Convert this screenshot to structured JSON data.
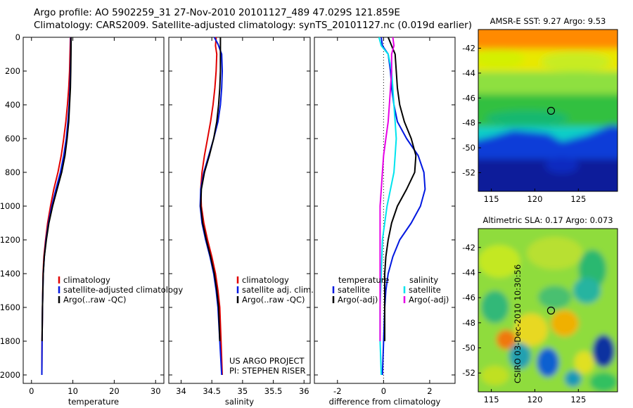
{
  "title": {
    "line1": "Argo profile: AO 5902259_31 27-Nov-2010 20101127_489 47.029S 121.859E",
    "line2": "Climatology: CARS2009. Satellite-adjusted climatology: synTS_20101127.nc (0.019d earlier)"
  },
  "watermark": "CSIRO 03-Dec-2010 10:30:56",
  "colors": {
    "climatology": "#e00000",
    "satellite": "#0018e0",
    "argo": "#000000",
    "sat_salinity": "#00e4ee",
    "argo_salinity_adj": "#e600e6"
  },
  "chart_data": [
    {
      "type": "line",
      "id": "temperature",
      "xlabel": "temperature",
      "xlim": [
        -2,
        32
      ],
      "ylim": [
        0,
        2050
      ],
      "y_reversed": true,
      "xticks": [
        0,
        10,
        20,
        30
      ],
      "xtick_labels": [
        "0",
        "10",
        "20",
        "30"
      ],
      "yticks": [
        0,
        200,
        400,
        600,
        800,
        1000,
        1200,
        1400,
        1600,
        1800,
        2000
      ],
      "ytick_labels": [
        "0",
        "200",
        "400",
        "600",
        "800",
        "1000",
        "1200",
        "1400",
        "1600",
        "1800",
        "2000"
      ],
      "legend": {
        "placement": "lower-right",
        "entries": [
          "climatology",
          "satellite-adjusted climatology",
          "Argo(..raw -QC)"
        ]
      },
      "series": [
        {
          "name": "climatology",
          "color": "#e00000",
          "x": [
            9.4,
            9.3,
            9.2,
            9.0,
            8.7,
            8.3,
            7.8,
            7.2,
            6.4,
            5.4,
            4.6,
            3.9,
            3.4,
            3.0,
            2.8,
            2.65,
            2.55,
            2.5
          ],
          "y": [
            0,
            100,
            200,
            300,
            400,
            500,
            600,
            700,
            800,
            900,
            1000,
            1100,
            1200,
            1300,
            1400,
            1600,
            1800,
            2000
          ]
        },
        {
          "name": "satellite-adjusted climatology",
          "color": "#0018e0",
          "x": [
            9.5,
            9.5,
            9.4,
            9.3,
            9.1,
            8.8,
            8.4,
            7.8,
            7.0,
            5.9,
            4.9,
            4.1,
            3.5,
            3.1,
            2.85,
            2.65,
            2.55,
            2.5
          ],
          "y": [
            0,
            100,
            200,
            300,
            400,
            500,
            600,
            700,
            800,
            900,
            1000,
            1100,
            1200,
            1300,
            1400,
            1600,
            1800,
            2000
          ]
        },
        {
          "name": "Argo(..raw -QC)",
          "color": "#000000",
          "x": [
            9.6,
            9.55,
            9.5,
            9.4,
            9.2,
            9.0,
            8.6,
            8.1,
            7.3,
            6.2,
            5.1,
            4.2,
            3.6,
            3.1,
            2.85,
            2.65,
            2.55
          ],
          "y": [
            0,
            100,
            200,
            300,
            400,
            500,
            600,
            700,
            800,
            900,
            1000,
            1100,
            1200,
            1300,
            1400,
            1600,
            1800
          ]
        }
      ]
    },
    {
      "type": "line",
      "id": "salinity",
      "xlabel": "salinity",
      "xlim": [
        33.8,
        36.1
      ],
      "ylim": [
        0,
        2050
      ],
      "y_reversed": true,
      "xticks": [
        34,
        34.5,
        35,
        35.5,
        36
      ],
      "xtick_labels": [
        "34",
        "34.5",
        "35",
        "35.5",
        "36"
      ],
      "legend": {
        "placement": "lower-right",
        "entries": [
          "climatology",
          "satellite adj. clim.",
          "Argo(..raw -QC)"
        ]
      },
      "annotation": [
        "US ARGO PROJECT",
        "PI: STEPHEN RISER"
      ],
      "series": [
        {
          "name": "climatology",
          "color": "#e00000",
          "x": [
            34.57,
            34.56,
            34.58,
            34.57,
            34.55,
            34.52,
            34.48,
            34.43,
            34.38,
            34.34,
            34.32,
            34.33,
            34.37,
            34.43,
            34.5,
            34.56,
            34.6,
            34.63,
            34.65,
            34.67
          ],
          "y": [
            0,
            50,
            100,
            200,
            300,
            400,
            500,
            600,
            700,
            800,
            900,
            1000,
            1100,
            1200,
            1300,
            1400,
            1500,
            1600,
            1800,
            2000
          ]
        },
        {
          "name": "satellite adj. clim.",
          "color": "#0018e0",
          "x": [
            34.54,
            34.6,
            34.66,
            34.67,
            34.66,
            34.64,
            34.6,
            34.53,
            34.45,
            34.37,
            34.32,
            34.31,
            34.34,
            34.4,
            34.47,
            34.53,
            34.57,
            34.6,
            34.63,
            34.66
          ],
          "y": [
            0,
            40,
            100,
            200,
            300,
            400,
            500,
            600,
            700,
            800,
            900,
            1000,
            1100,
            1200,
            1300,
            1400,
            1500,
            1600,
            1800,
            2000
          ]
        },
        {
          "name": "Argo(..raw -QC)",
          "color": "#000000",
          "x": [
            34.64,
            34.64,
            34.64,
            34.64,
            34.63,
            34.61,
            34.58,
            34.53,
            34.46,
            34.38,
            34.33,
            34.32,
            34.35,
            34.41,
            34.48,
            34.54,
            34.58,
            34.61,
            34.63
          ],
          "y": [
            0,
            50,
            100,
            200,
            300,
            400,
            500,
            600,
            700,
            800,
            900,
            1000,
            1100,
            1200,
            1300,
            1400,
            1500,
            1600,
            1800
          ]
        }
      ]
    },
    {
      "type": "line",
      "id": "difference",
      "xlabel": "difference from climatology",
      "xlim": [
        -3,
        3.1
      ],
      "ylim": [
        0,
        2050
      ],
      "y_reversed": true,
      "xticks": [
        -2,
        0,
        2
      ],
      "xtick_labels": [
        "-2",
        "0",
        "2"
      ],
      "legend": {
        "placement": "lower-center",
        "temperature_heading": "temperature",
        "salinity_heading": "salinity",
        "entries": [
          "satellite",
          "Argo(-adj)",
          "satellite",
          "Argo(-adj)"
        ]
      },
      "series": [
        {
          "name": "temperature satellite",
          "color": "#0018e0",
          "x": [
            -0.1,
            -0.05,
            0.2,
            0.3,
            0.35,
            0.45,
            0.6,
            1.0,
            1.5,
            1.75,
            1.8,
            1.6,
            1.2,
            0.7,
            0.4,
            0.2,
            0.1,
            0.05,
            0.0,
            -0.05
          ],
          "y": [
            0,
            50,
            100,
            200,
            300,
            400,
            500,
            600,
            700,
            800,
            900,
            1000,
            1100,
            1200,
            1300,
            1400,
            1500,
            1600,
            1800,
            2000
          ]
        },
        {
          "name": "temperature Argo(-adj)",
          "color": "#000000",
          "x": [
            0.2,
            0.35,
            0.5,
            0.55,
            0.6,
            0.7,
            0.9,
            1.2,
            1.4,
            1.35,
            1.0,
            0.6,
            0.35,
            0.2,
            0.1,
            0.05,
            0.05,
            0.05,
            0.05
          ],
          "y": [
            0,
            50,
            100,
            200,
            300,
            400,
            500,
            600,
            700,
            800,
            900,
            1000,
            1100,
            1200,
            1300,
            1400,
            1500,
            1600,
            1800
          ]
        },
        {
          "name": "salinity satellite",
          "color": "#00e4ee",
          "x": [
            -0.2,
            -0.1,
            0.2,
            0.35,
            0.4,
            0.45,
            0.5,
            0.55,
            0.5,
            0.45,
            0.3,
            0.15,
            0.05,
            -0.05,
            -0.1,
            -0.15,
            -0.15,
            -0.1
          ],
          "y": [
            0,
            50,
            100,
            200,
            300,
            400,
            500,
            600,
            700,
            800,
            900,
            1000,
            1100,
            1200,
            1400,
            1600,
            1800,
            2000
          ]
        },
        {
          "name": "salinity Argo(-adj)",
          "color": "#e600e6",
          "x": [
            0.4,
            0.45,
            0.35,
            0.35,
            0.3,
            0.25,
            0.2,
            0.1,
            0.0,
            -0.05,
            -0.1,
            -0.15,
            -0.15,
            -0.15,
            -0.15,
            -0.15,
            -0.15
          ],
          "y": [
            0,
            50,
            100,
            200,
            300,
            400,
            500,
            600,
            700,
            800,
            900,
            1000,
            1100,
            1200,
            1400,
            1600,
            1800
          ]
        }
      ],
      "reference_line": {
        "x": 0,
        "style": "dotted"
      }
    },
    {
      "type": "heatmap",
      "id": "sst_map",
      "title": "AMSR-E SST: 9.27 Argo: 9.53",
      "xlim": [
        113.5,
        129.5
      ],
      "ylim": [
        -53.5,
        -40.5
      ],
      "xticks": [
        115,
        120,
        125
      ],
      "xtick_labels": [
        "115",
        "120",
        "125"
      ],
      "yticks": [
        -42,
        -44,
        -46,
        -48,
        -50,
        -52
      ],
      "ytick_labels": [
        "-42",
        "-44",
        "-46",
        "-48",
        "-50",
        "-52"
      ],
      "marker": {
        "lon": 121.859,
        "lat": -47.029
      }
    },
    {
      "type": "heatmap",
      "id": "sla_map",
      "title": "Altimetric SLA: 0.17 Argo: 0.073",
      "xlim": [
        113.5,
        129.5
      ],
      "ylim": [
        -53.5,
        -40.5
      ],
      "xticks": [
        115,
        120,
        125
      ],
      "xtick_labels": [
        "115",
        "120",
        "125"
      ],
      "yticks": [
        -42,
        -44,
        -46,
        -48,
        -50,
        -52
      ],
      "ytick_labels": [
        "-42",
        "-44",
        "-46",
        "-48",
        "-50",
        "-52"
      ],
      "marker": {
        "lon": 121.859,
        "lat": -47.029
      }
    }
  ]
}
